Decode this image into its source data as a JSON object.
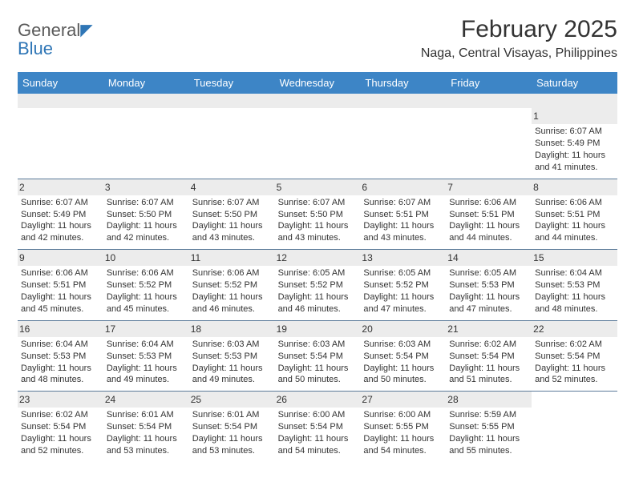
{
  "brand": {
    "word_general": "General",
    "word_blue": "Blue",
    "text_color": "#5a5a5a",
    "accent_color": "#2f76b6",
    "glyph": "◤"
  },
  "title": "February 2025",
  "subtitle": "Naga, Central Visayas, Philippines",
  "header": {
    "bg_color": "#3d85c6",
    "text_color": "#ffffff",
    "days": [
      "Sunday",
      "Monday",
      "Tuesday",
      "Wednesday",
      "Thursday",
      "Friday",
      "Saturday"
    ]
  },
  "grid": {
    "divider_color": "#5b7a99",
    "shade_color": "#ececec",
    "cell_fontsize": 11
  },
  "weeks": [
    [
      null,
      null,
      null,
      null,
      null,
      null,
      {
        "d": "1",
        "sunrise": "6:07 AM",
        "sunset": "5:49 PM",
        "day_h": 11,
        "day_m": 41
      }
    ],
    [
      {
        "d": "2",
        "sunrise": "6:07 AM",
        "sunset": "5:49 PM",
        "day_h": 11,
        "day_m": 42
      },
      {
        "d": "3",
        "sunrise": "6:07 AM",
        "sunset": "5:50 PM",
        "day_h": 11,
        "day_m": 42
      },
      {
        "d": "4",
        "sunrise": "6:07 AM",
        "sunset": "5:50 PM",
        "day_h": 11,
        "day_m": 43
      },
      {
        "d": "5",
        "sunrise": "6:07 AM",
        "sunset": "5:50 PM",
        "day_h": 11,
        "day_m": 43
      },
      {
        "d": "6",
        "sunrise": "6:07 AM",
        "sunset": "5:51 PM",
        "day_h": 11,
        "day_m": 43
      },
      {
        "d": "7",
        "sunrise": "6:06 AM",
        "sunset": "5:51 PM",
        "day_h": 11,
        "day_m": 44
      },
      {
        "d": "8",
        "sunrise": "6:06 AM",
        "sunset": "5:51 PM",
        "day_h": 11,
        "day_m": 44
      }
    ],
    [
      {
        "d": "9",
        "sunrise": "6:06 AM",
        "sunset": "5:51 PM",
        "day_h": 11,
        "day_m": 45
      },
      {
        "d": "10",
        "sunrise": "6:06 AM",
        "sunset": "5:52 PM",
        "day_h": 11,
        "day_m": 45
      },
      {
        "d": "11",
        "sunrise": "6:06 AM",
        "sunset": "5:52 PM",
        "day_h": 11,
        "day_m": 46
      },
      {
        "d": "12",
        "sunrise": "6:05 AM",
        "sunset": "5:52 PM",
        "day_h": 11,
        "day_m": 46
      },
      {
        "d": "13",
        "sunrise": "6:05 AM",
        "sunset": "5:52 PM",
        "day_h": 11,
        "day_m": 47
      },
      {
        "d": "14",
        "sunrise": "6:05 AM",
        "sunset": "5:53 PM",
        "day_h": 11,
        "day_m": 47
      },
      {
        "d": "15",
        "sunrise": "6:04 AM",
        "sunset": "5:53 PM",
        "day_h": 11,
        "day_m": 48
      }
    ],
    [
      {
        "d": "16",
        "sunrise": "6:04 AM",
        "sunset": "5:53 PM",
        "day_h": 11,
        "day_m": 48
      },
      {
        "d": "17",
        "sunrise": "6:04 AM",
        "sunset": "5:53 PM",
        "day_h": 11,
        "day_m": 49
      },
      {
        "d": "18",
        "sunrise": "6:03 AM",
        "sunset": "5:53 PM",
        "day_h": 11,
        "day_m": 49
      },
      {
        "d": "19",
        "sunrise": "6:03 AM",
        "sunset": "5:54 PM",
        "day_h": 11,
        "day_m": 50
      },
      {
        "d": "20",
        "sunrise": "6:03 AM",
        "sunset": "5:54 PM",
        "day_h": 11,
        "day_m": 50
      },
      {
        "d": "21",
        "sunrise": "6:02 AM",
        "sunset": "5:54 PM",
        "day_h": 11,
        "day_m": 51
      },
      {
        "d": "22",
        "sunrise": "6:02 AM",
        "sunset": "5:54 PM",
        "day_h": 11,
        "day_m": 52
      }
    ],
    [
      {
        "d": "23",
        "sunrise": "6:02 AM",
        "sunset": "5:54 PM",
        "day_h": 11,
        "day_m": 52
      },
      {
        "d": "24",
        "sunrise": "6:01 AM",
        "sunset": "5:54 PM",
        "day_h": 11,
        "day_m": 53
      },
      {
        "d": "25",
        "sunrise": "6:01 AM",
        "sunset": "5:54 PM",
        "day_h": 11,
        "day_m": 53
      },
      {
        "d": "26",
        "sunrise": "6:00 AM",
        "sunset": "5:54 PM",
        "day_h": 11,
        "day_m": 54
      },
      {
        "d": "27",
        "sunrise": "6:00 AM",
        "sunset": "5:55 PM",
        "day_h": 11,
        "day_m": 54
      },
      {
        "d": "28",
        "sunrise": "5:59 AM",
        "sunset": "5:55 PM",
        "day_h": 11,
        "day_m": 55
      },
      null
    ]
  ]
}
